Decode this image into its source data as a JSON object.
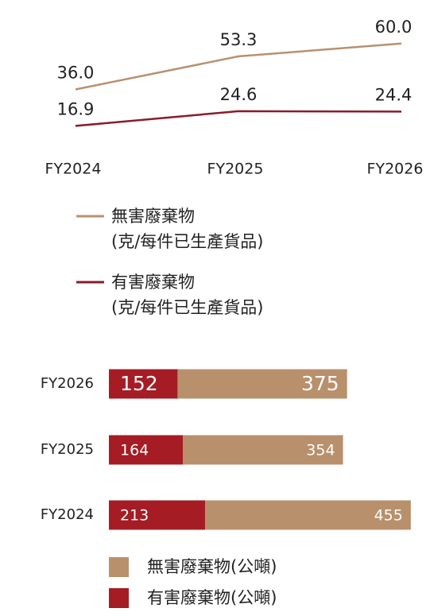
{
  "chart_data": [
    {
      "type": "line",
      "categories": [
        "FY2024",
        "FY2025",
        "FY2026"
      ],
      "ylim": [
        10,
        62
      ],
      "series": [
        {
          "name": "無害廢棄物\n(克/每件已生產貨品)",
          "color": "#b8916f",
          "values": [
            36.0,
            53.3,
            60.0
          ],
          "value_labels": [
            "36.0",
            "53.3",
            "60.0"
          ]
        },
        {
          "name": "有害廢棄物\n(克/每件已生產貨品)",
          "color": "#8a1c2b",
          "values": [
            16.9,
            24.6,
            24.4
          ]
        }
      ]
    },
    {
      "type": "stacked-bar-horizontal",
      "categories": [
        "FY2026",
        "FY2025",
        "FY2024"
      ],
      "xlim": [
        0,
        670
      ],
      "series": [
        {
          "name": "有害廢棄物(公噸)",
          "color": "#a51c24",
          "values": [
            152,
            164,
            213
          ]
        },
        {
          "name": "無害廢棄物(公噸)",
          "color": "#b8906c",
          "values": [
            375,
            354,
            455
          ]
        }
      ]
    }
  ]
}
